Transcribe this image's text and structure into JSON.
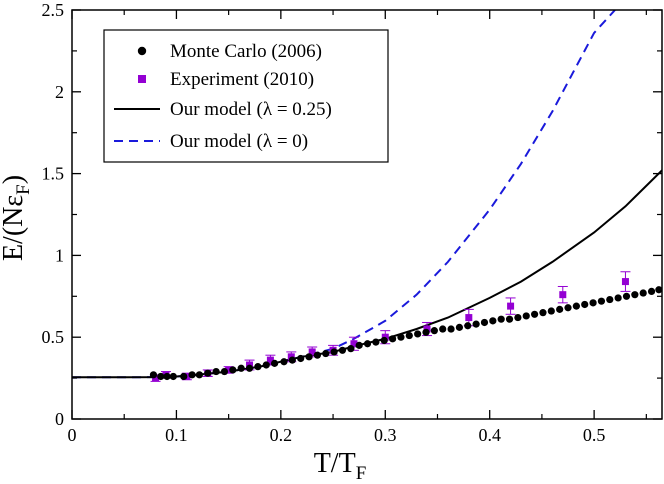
{
  "chart_data": {
    "type": "scatter",
    "title": "",
    "xlabel": "T/T",
    "xlabel_sub": "F",
    "ylabel": "E/(Nε",
    "ylabel_sub": "F",
    "ylabel_close": ")",
    "xlim": [
      0,
      0.565
    ],
    "ylim": [
      0,
      2.5
    ],
    "xticks": [
      0,
      0.1,
      0.2,
      0.3,
      0.4,
      0.5
    ],
    "xtick_labels": [
      "0",
      "0.1",
      "0.2",
      "0.3",
      "0.4",
      "0.5"
    ],
    "yticks": [
      0,
      0.5,
      1,
      1.5,
      2,
      2.5
    ],
    "ytick_labels": [
      "0",
      "0.5",
      "1",
      "1.5",
      "2",
      "2.5"
    ],
    "legend_position": "top-left",
    "colors": {
      "monte_carlo": "#000000",
      "experiment": "#9400d3",
      "model_lambda_025": "#000000",
      "model_lambda_0": "#1a1adb"
    },
    "series": [
      {
        "name": "Monte Carlo (2006)",
        "legend_label": "Monte Carlo (2006)",
        "kind": "points",
        "marker": "circle",
        "x": [
          0.078,
          0.085,
          0.091,
          0.097,
          0.107,
          0.115,
          0.122,
          0.13,
          0.138,
          0.146,
          0.154,
          0.162,
          0.17,
          0.178,
          0.186,
          0.194,
          0.203,
          0.211,
          0.219,
          0.227,
          0.235,
          0.243,
          0.251,
          0.259,
          0.267,
          0.275,
          0.283,
          0.291,
          0.299,
          0.307,
          0.315,
          0.323,
          0.331,
          0.339,
          0.347,
          0.355,
          0.363,
          0.371,
          0.379,
          0.387,
          0.395,
          0.403,
          0.411,
          0.419,
          0.427,
          0.435,
          0.443,
          0.451,
          0.459,
          0.467,
          0.475,
          0.483,
          0.491,
          0.499,
          0.507,
          0.515,
          0.523,
          0.531,
          0.539,
          0.547,
          0.555,
          0.562
        ],
        "y": [
          0.27,
          0.26,
          0.26,
          0.26,
          0.26,
          0.27,
          0.27,
          0.28,
          0.29,
          0.29,
          0.3,
          0.31,
          0.31,
          0.32,
          0.33,
          0.34,
          0.35,
          0.36,
          0.37,
          0.38,
          0.39,
          0.4,
          0.41,
          0.42,
          0.43,
          0.45,
          0.46,
          0.47,
          0.48,
          0.49,
          0.5,
          0.51,
          0.52,
          0.53,
          0.54,
          0.55,
          0.55,
          0.56,
          0.57,
          0.58,
          0.59,
          0.6,
          0.61,
          0.61,
          0.62,
          0.63,
          0.64,
          0.65,
          0.66,
          0.67,
          0.68,
          0.69,
          0.7,
          0.71,
          0.72,
          0.73,
          0.74,
          0.75,
          0.76,
          0.77,
          0.78,
          0.79
        ]
      },
      {
        "name": "Experiment (2010)",
        "legend_label": "Experiment (2010)",
        "kind": "points",
        "marker": "square",
        "x": [
          0.08,
          0.09,
          0.11,
          0.13,
          0.15,
          0.17,
          0.19,
          0.21,
          0.23,
          0.25,
          0.27,
          0.3,
          0.34,
          0.38,
          0.42,
          0.47,
          0.53
        ],
        "y": [
          0.25,
          0.27,
          0.26,
          0.28,
          0.3,
          0.33,
          0.36,
          0.38,
          0.41,
          0.42,
          0.46,
          0.5,
          0.55,
          0.62,
          0.69,
          0.76,
          0.84
        ],
        "err": [
          0.02,
          0.02,
          0.02,
          0.02,
          0.02,
          0.03,
          0.03,
          0.03,
          0.03,
          0.03,
          0.04,
          0.04,
          0.04,
          0.05,
          0.05,
          0.05,
          0.06
        ]
      },
      {
        "name": "Our model (λ = 0.25)",
        "legend_label": "Our model (λ = 0.25)",
        "kind": "line",
        "dash": "solid",
        "x": [
          0,
          0.05,
          0.08,
          0.1,
          0.12,
          0.15,
          0.18,
          0.2,
          0.22,
          0.25,
          0.28,
          0.3,
          0.33,
          0.36,
          0.4,
          0.43,
          0.46,
          0.5,
          0.53,
          0.565
        ],
        "y": [
          0.255,
          0.255,
          0.256,
          0.26,
          0.27,
          0.29,
          0.32,
          0.35,
          0.38,
          0.41,
          0.46,
          0.49,
          0.55,
          0.62,
          0.74,
          0.84,
          0.96,
          1.14,
          1.3,
          1.52
        ]
      },
      {
        "name": "Our model (λ = 0)",
        "legend_label": "Our model (λ = 0)",
        "kind": "line",
        "dash": "dashed",
        "x": [
          0,
          0.05,
          0.08,
          0.1,
          0.12,
          0.15,
          0.18,
          0.2,
          0.22,
          0.25,
          0.27,
          0.3,
          0.33,
          0.36,
          0.4,
          0.43,
          0.46,
          0.48,
          0.5,
          0.52
        ],
        "y": [
          0.255,
          0.255,
          0.256,
          0.26,
          0.27,
          0.29,
          0.32,
          0.35,
          0.38,
          0.43,
          0.49,
          0.6,
          0.76,
          0.96,
          1.28,
          1.56,
          1.88,
          2.12,
          2.36,
          2.5
        ]
      }
    ]
  }
}
